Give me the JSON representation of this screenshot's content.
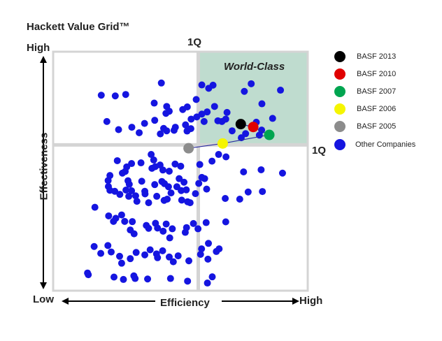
{
  "chart_data": {
    "type": "scatter",
    "title": "Hackett Value Grid™",
    "xlabel": "Efficiency",
    "ylabel": "Effectiveness",
    "x_low_label": "Low",
    "x_high_label": "High",
    "y_high_label": "High",
    "quadrant_label_top": "1Q",
    "quadrant_label_right": "1Q",
    "region_label": "World-Class",
    "xlim": [
      0,
      100
    ],
    "ylim": [
      0,
      100
    ],
    "first_quartile_x": 57,
    "first_quartile_y": 61,
    "colors": {
      "world_class_fill": "#bfdccf",
      "other": "#1515e0",
      "basf_2013": "#000000",
      "basf_2010": "#e00000",
      "basf_2007": "#00a550",
      "basf_2006": "#f5f500",
      "basf_2005": "#8c8c8c"
    },
    "legend": [
      {
        "label": "BASF 2013",
        "color": "#000000"
      },
      {
        "label": "BASF 2010",
        "color": "#e00000"
      },
      {
        "label": "BASF 2007",
        "color": "#00a550"
      },
      {
        "label": "BASF 2006",
        "color": "#f5f500"
      },
      {
        "label": "BASF 2005",
        "color": "#8c8c8c"
      },
      {
        "label": "Other Companies",
        "color": "#1515e0"
      }
    ],
    "series": [
      {
        "name": "BASF 2013",
        "x": [
          73.7
        ],
        "y": [
          69.7
        ]
      },
      {
        "name": "BASF 2010",
        "x": [
          78.6
        ],
        "y": [
          68.5
        ]
      },
      {
        "name": "BASF 2007",
        "x": [
          84.9
        ],
        "y": [
          65.2
        ]
      },
      {
        "name": "BASF 2006",
        "x": [
          66.6
        ],
        "y": [
          61.6
        ]
      },
      {
        "name": "BASF 2005",
        "x": [
          53.2
        ],
        "y": [
          59.6
        ]
      },
      {
        "name": "Other Companies",
        "points": [
          [
            18.9,
            81.8
          ],
          [
            24.4,
            81.5
          ],
          [
            28.5,
            82.1
          ],
          [
            42.5,
            86.9
          ],
          [
            39.7,
            78.5
          ],
          [
            56.2,
            80.0
          ],
          [
            61.1,
            84.7
          ],
          [
            62.8,
            86.0
          ],
          [
            75.1,
            83.4
          ],
          [
            77.8,
            86.6
          ],
          [
            89.3,
            83.9
          ],
          [
            58.4,
            86.1
          ],
          [
            63.4,
            77.1
          ],
          [
            82.0,
            78.2
          ],
          [
            60.5,
            74.8
          ],
          [
            68.3,
            74.6
          ],
          [
            86.2,
            72.1
          ],
          [
            39.9,
            71.3
          ],
          [
            44.3,
            74.2
          ],
          [
            44.6,
            77.1
          ],
          [
            45.6,
            75.1
          ],
          [
            50.9,
            75.8
          ],
          [
            52.7,
            76.9
          ],
          [
            54.2,
            71.8
          ],
          [
            52.0,
            69.4
          ],
          [
            56.4,
            72.7
          ],
          [
            58.4,
            73.9
          ],
          [
            59.3,
            70.8
          ],
          [
            64.7,
            71.1
          ],
          [
            66.3,
            70.8
          ],
          [
            67.8,
            71.8
          ],
          [
            70.3,
            66.9
          ],
          [
            79.8,
            70.5
          ],
          [
            81.9,
            67.2
          ],
          [
            75.6,
            65.7
          ],
          [
            81.0,
            65.1
          ],
          [
            73.9,
            64.0
          ],
          [
            21.1,
            70.8
          ],
          [
            25.7,
            67.4
          ],
          [
            30.9,
            68.4
          ],
          [
            35.9,
            70.0
          ],
          [
            43.4,
            67.9
          ],
          [
            44.6,
            66.9
          ],
          [
            47.5,
            67.1
          ],
          [
            48.0,
            68.4
          ],
          [
            52.6,
            66.8
          ],
          [
            54.1,
            67.8
          ],
          [
            42.1,
            65.6
          ],
          [
            33.8,
            66.1
          ],
          [
            25.2,
            54.4
          ],
          [
            34.5,
            53.5
          ],
          [
            38.5,
            57.0
          ],
          [
            38.8,
            51.2
          ],
          [
            40.1,
            51.9
          ],
          [
            39.5,
            54.7
          ],
          [
            42.0,
            52.6
          ],
          [
            43.1,
            50.5
          ],
          [
            45.6,
            50.0
          ],
          [
            47.9,
            53.0
          ],
          [
            50.1,
            52.1
          ],
          [
            49.5,
            46.9
          ],
          [
            51.4,
            45.4
          ],
          [
            52.3,
            42.2
          ],
          [
            57.6,
            52.8
          ],
          [
            59.5,
            46.9
          ],
          [
            57.2,
            44.9
          ],
          [
            58.4,
            47.4
          ],
          [
            62.4,
            54.2
          ],
          [
            65.0,
            57.0
          ],
          [
            67.9,
            56.0
          ],
          [
            74.8,
            49.7
          ],
          [
            76.6,
            41.3
          ],
          [
            81.7,
            50.6
          ],
          [
            82.2,
            41.5
          ],
          [
            90.1,
            49.2
          ],
          [
            30.8,
            53.2
          ],
          [
            28.9,
            51.8
          ],
          [
            28.3,
            49.9
          ],
          [
            27.2,
            49.2
          ],
          [
            22.3,
            48.2
          ],
          [
            21.6,
            46.1
          ],
          [
            29.4,
            46.0
          ],
          [
            29.9,
            44.5
          ],
          [
            30.8,
            41.8
          ],
          [
            34.8,
            45.8
          ],
          [
            36.0,
            41.6
          ],
          [
            39.9,
            44.4
          ],
          [
            42.7,
            45.7
          ],
          [
            43.7,
            44.8
          ],
          [
            45.3,
            43.5
          ],
          [
            46.3,
            40.9
          ],
          [
            48.6,
            43.5
          ],
          [
            50.3,
            41.9
          ],
          [
            50.5,
            37.9
          ],
          [
            21.7,
            43.6
          ],
          [
            22.3,
            42.0
          ],
          [
            24.2,
            41.6
          ],
          [
            26.2,
            40.3
          ],
          [
            28.6,
            42.1
          ],
          [
            29.7,
            39.5
          ],
          [
            32.4,
            39.7
          ],
          [
            32.9,
            37.4
          ],
          [
            36.1,
            40.5
          ],
          [
            37.5,
            36.8
          ],
          [
            40.7,
            39.5
          ],
          [
            43.6,
            37.8
          ],
          [
            44.8,
            38.3
          ],
          [
            52.8,
            37.2
          ],
          [
            53.8,
            36.8
          ],
          [
            55.9,
            40.6
          ],
          [
            60.3,
            42.5
          ],
          [
            67.6,
            38.6
          ],
          [
            73.3,
            38.3
          ],
          [
            16.4,
            34.9
          ],
          [
            21.8,
            31.3
          ],
          [
            23.7,
            29.0
          ],
          [
            24.6,
            30.3
          ],
          [
            26.9,
            31.7
          ],
          [
            28.1,
            29.0
          ],
          [
            30.3,
            25.4
          ],
          [
            31.1,
            28.9
          ],
          [
            31.8,
            23.8
          ],
          [
            36.6,
            27.3
          ],
          [
            37.5,
            26.1
          ],
          [
            40.2,
            28.2
          ],
          [
            41.0,
            26.2
          ],
          [
            43.2,
            24.9
          ],
          [
            44.4,
            27.9
          ],
          [
            45.8,
            22.1
          ],
          [
            46.8,
            25.9
          ],
          [
            51.9,
            24.4
          ],
          [
            52.4,
            26.4
          ],
          [
            55.1,
            28.1
          ],
          [
            56.9,
            25.9
          ],
          [
            60.1,
            28.5
          ],
          [
            61.0,
            19.8
          ],
          [
            67.8,
            28.8
          ],
          [
            16.1,
            18.5
          ],
          [
            18.7,
            15.6
          ],
          [
            21.5,
            18.9
          ],
          [
            22.8,
            16.2
          ],
          [
            26.1,
            14.4
          ],
          [
            26.9,
            11.5
          ],
          [
            30.3,
            13.4
          ],
          [
            32.6,
            16.0
          ],
          [
            36.0,
            15.0
          ],
          [
            38.1,
            17.1
          ],
          [
            40.6,
            15.4
          ],
          [
            41.0,
            13.8
          ],
          [
            43.0,
            16.7
          ],
          [
            45.6,
            14.1
          ],
          [
            47.2,
            12.1
          ],
          [
            49.1,
            14.6
          ],
          [
            53.3,
            12.5
          ],
          [
            57.9,
            15.2
          ],
          [
            58.3,
            17.5
          ],
          [
            60.8,
            13.2
          ],
          [
            64.1,
            16.4
          ],
          [
            65.2,
            17.5
          ],
          [
            13.5,
            7.4
          ],
          [
            13.8,
            6.7
          ],
          [
            23.9,
            5.7
          ],
          [
            27.6,
            4.7
          ],
          [
            31.7,
            6.2
          ],
          [
            32.2,
            5.1
          ],
          [
            37.1,
            4.9
          ],
          [
            46.1,
            5.1
          ],
          [
            52.8,
            4.0
          ],
          [
            60.6,
            3.2
          ],
          [
            62.5,
            5.8
          ]
        ]
      }
    ]
  }
}
